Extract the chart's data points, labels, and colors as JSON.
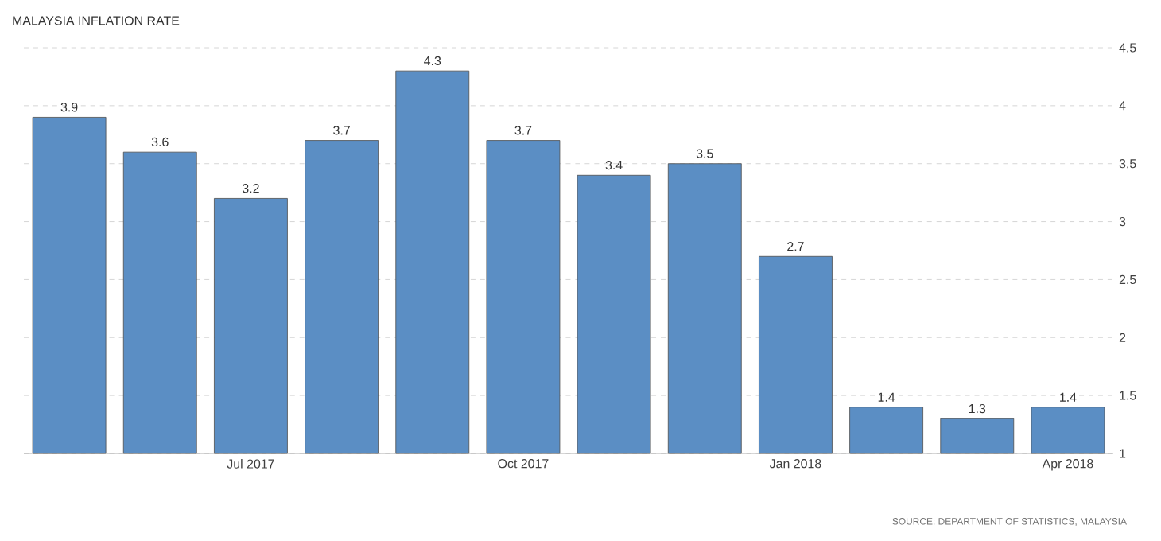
{
  "chart_data": {
    "type": "bar",
    "title": "MALAYSIA INFLATION RATE",
    "categories": [
      null,
      null,
      "Jul 2017",
      null,
      null,
      "Oct 2017",
      null,
      null,
      "Jan 2018",
      null,
      null,
      "Apr 2018"
    ],
    "values": [
      3.9,
      3.6,
      3.2,
      3.7,
      4.3,
      3.7,
      3.4,
      3.5,
      2.7,
      1.4,
      1.3,
      1.4
    ],
    "color": "#5b8ec4",
    "ylim": [
      1,
      4.5
    ],
    "yticks": [
      1,
      1.5,
      2,
      2.5,
      3,
      3.5,
      4,
      4.5
    ],
    "grid": "y",
    "data_labels": true,
    "annotations": [
      "SOURCE: DEPARTMENT OF STATISTICS, MALAYSIA"
    ]
  }
}
